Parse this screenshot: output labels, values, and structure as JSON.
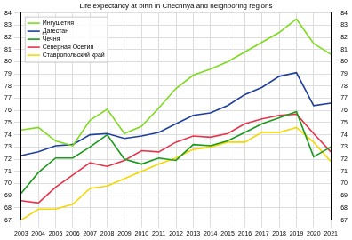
{
  "chart_data": {
    "type": "line",
    "title": "Life expectancy at birth in Chechnya and neighboring regions",
    "x": [
      2003,
      2004,
      2005,
      2006,
      2007,
      2008,
      2009,
      2010,
      2011,
      2012,
      2013,
      2014,
      2015,
      2016,
      2017,
      2018,
      2019,
      2020,
      2021
    ],
    "xlim": [
      2003,
      2021
    ],
    "xticks": [
      2003,
      2004,
      2005,
      2006,
      2007,
      2008,
      2009,
      2010,
      2011,
      2012,
      2013,
      2014,
      2015,
      2016,
      2017,
      2018,
      2019,
      2020,
      2021
    ],
    "ylim": [
      67,
      84
    ],
    "yticks": [
      67,
      68,
      69,
      70,
      71,
      72,
      73,
      74,
      75,
      76,
      77,
      78,
      79,
      80,
      81,
      82,
      83,
      84
    ],
    "y2lim": [
      67,
      84
    ],
    "y2ticks": [
      67,
      68,
      69,
      70,
      71,
      72,
      73,
      74,
      75,
      76,
      77,
      78,
      79,
      80,
      81,
      82,
      83,
      84
    ],
    "grid": true,
    "legend": "upper left",
    "series": [
      {
        "name": "Ингушетия",
        "color": "#7ddc1f",
        "values": [
          74.4,
          74.6,
          73.5,
          73.1,
          75.2,
          76.1,
          74.1,
          74.7,
          76.2,
          77.8,
          78.9,
          79.4,
          80.0,
          80.8,
          81.6,
          82.4,
          83.5,
          81.5,
          80.6
        ]
      },
      {
        "name": "Дагестан",
        "color": "#1f3fa0",
        "values": [
          72.3,
          72.6,
          73.1,
          73.2,
          74.0,
          74.1,
          73.7,
          73.9,
          74.2,
          74.9,
          75.6,
          75.8,
          76.4,
          77.3,
          77.9,
          78.8,
          79.1,
          76.4,
          76.6
        ]
      },
      {
        "name": "Чечня",
        "color": "#1a9a1a",
        "values": [
          69.2,
          70.9,
          72.1,
          72.1,
          73.0,
          74.0,
          72.0,
          71.6,
          72.1,
          71.9,
          73.2,
          73.1,
          73.5,
          74.2,
          74.9,
          75.4,
          75.9,
          72.2,
          73.0
        ]
      },
      {
        "name": "Северная Осетия",
        "color": "#e8334a",
        "values": [
          68.6,
          68.4,
          69.7,
          70.7,
          71.7,
          71.4,
          71.9,
          72.7,
          72.6,
          73.4,
          73.9,
          73.8,
          74.1,
          74.9,
          75.3,
          75.6,
          75.7,
          74.1,
          72.6
        ]
      },
      {
        "name": "Ставропольский край",
        "color": "#f5d800",
        "values": [
          67.0,
          67.9,
          67.9,
          68.3,
          69.6,
          69.8,
          70.4,
          71.0,
          71.6,
          72.1,
          72.8,
          73.0,
          73.4,
          73.4,
          74.2,
          74.2,
          74.6,
          73.4,
          71.8
        ]
      }
    ]
  }
}
